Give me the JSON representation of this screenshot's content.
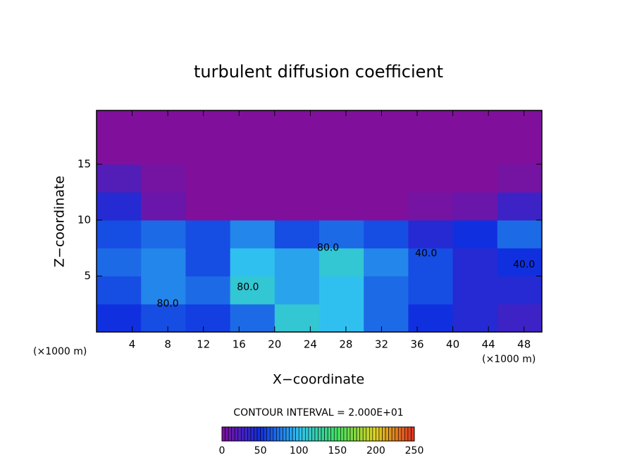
{
  "chart_data": {
    "type": "heatmap",
    "title": "turbulent diffusion coefficient",
    "x_label": "X−coordinate",
    "y_label": "Z−coordinate",
    "x_unit_label": "(×1000 m)",
    "contour_note": "CONTOUR INTERVAL = 2.000E+01",
    "xlim": [
      0,
      50
    ],
    "ylim": [
      0,
      19.8
    ],
    "xticks": [
      4,
      8,
      12,
      16,
      20,
      24,
      28,
      32,
      36,
      40,
      44,
      48
    ],
    "yticks": [
      5,
      10,
      15
    ],
    "x_edges": [
      0,
      5,
      10,
      15,
      20,
      25,
      30,
      35,
      40,
      45,
      50
    ],
    "z_edges": [
      0,
      2.5,
      5,
      7.5,
      10,
      12.5,
      15,
      17.5,
      20
    ],
    "values": [
      [
        50,
        60,
        55,
        70,
        110,
        100,
        70,
        50,
        40,
        30
      ],
      [
        60,
        80,
        70,
        110,
        90,
        100,
        70,
        60,
        40,
        40
      ],
      [
        70,
        80,
        60,
        100,
        90,
        110,
        80,
        60,
        40,
        50
      ],
      [
        60,
        70,
        60,
        80,
        60,
        70,
        60,
        40,
        50,
        70
      ],
      [
        40,
        10,
        0,
        0,
        0,
        0,
        0,
        5,
        10,
        30
      ],
      [
        20,
        5,
        0,
        0,
        0,
        0,
        0,
        0,
        0,
        5
      ],
      [
        0,
        0,
        0,
        0,
        0,
        0,
        0,
        0,
        0,
        0
      ],
      [
        0,
        0,
        0,
        0,
        0,
        0,
        0,
        0,
        0,
        0
      ]
    ],
    "contour_labels": [
      {
        "text": "80.0",
        "x": 26,
        "z": 7.5
      },
      {
        "text": "80.0",
        "x": 17,
        "z": 4
      },
      {
        "text": "80.0",
        "x": 8,
        "z": 2.5
      },
      {
        "text": "40.0",
        "x": 37,
        "z": 7
      },
      {
        "text": "40.0",
        "x": 48,
        "z": 6
      }
    ],
    "colorbar": {
      "ticks": [
        0,
        50,
        100,
        150,
        200,
        250
      ],
      "colors": [
        "#80109c",
        "#1030e0",
        "#30c0f0",
        "#40e060",
        "#e0d020",
        "#e03020"
      ]
    }
  }
}
